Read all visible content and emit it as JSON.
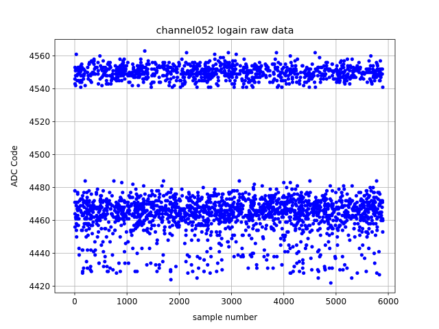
{
  "chart_data": {
    "type": "scatter",
    "title": "channel052 logain raw data",
    "xlabel": "sample number",
    "ylabel": "ADC Code",
    "xlim": [
      -380,
      6130
    ],
    "ylim": [
      4416,
      4570
    ],
    "xticks": [
      0,
      1000,
      2000,
      3000,
      4000,
      5000,
      6000
    ],
    "xtick_labels": [
      "0",
      "1000",
      "2000",
      "3000",
      "4000",
      "5000",
      "6000"
    ],
    "yticks": [
      4420,
      4440,
      4460,
      4480,
      4500,
      4520,
      4540,
      4560
    ],
    "ytick_labels": [
      "4420",
      "4440",
      "4460",
      "4480",
      "4500",
      "4520",
      "4540",
      "4560"
    ],
    "grid": true,
    "legend": "none",
    "colors": {
      "points": "#0000ff",
      "grid": "#b0b0b0",
      "axes": "#000000"
    },
    "series": [
      {
        "sample_range": [
          0,
          5900
        ],
        "sample_count": 5901,
        "clusters": [
          {
            "center": 4467,
            "core_range": [
              4455,
              4476
            ],
            "full_range": [
              4422,
              4484
            ],
            "outliers": [
              {
                "x": 150,
                "y": 4428
              },
              {
                "x": 170,
                "y": 4431
              },
              {
                "x": 300,
                "y": 4430
              },
              {
                "x": 960,
                "y": 4434
              },
              {
                "x": 1030,
                "y": 4434
              },
              {
                "x": 1550,
                "y": 4433
              },
              {
                "x": 1840,
                "y": 4424
              },
              {
                "x": 2340,
                "y": 4425
              },
              {
                "x": 2370,
                "y": 4431
              },
              {
                "x": 2820,
                "y": 4430
              },
              {
                "x": 3320,
                "y": 4431
              },
              {
                "x": 3480,
                "y": 4433
              },
              {
                "x": 4250,
                "y": 4434
              },
              {
                "x": 4660,
                "y": 4425
              },
              {
                "x": 4780,
                "y": 4432
              },
              {
                "x": 4900,
                "y": 4422
              },
              {
                "x": 5300,
                "y": 4425
              },
              {
                "x": 5780,
                "y": 4428
              },
              {
                "x": 5830,
                "y": 4427
              },
              {
                "x": 200,
                "y": 4484
              },
              {
                "x": 900,
                "y": 4483
              },
              {
                "x": 3150,
                "y": 4484
              },
              {
                "x": 4000,
                "y": 4483
              },
              {
                "x": 4500,
                "y": 4484
              }
            ]
          },
          {
            "center": 4550,
            "core_range": [
              4544,
              4557
            ],
            "full_range": [
              4541,
              4563
            ],
            "outliers": [
              {
                "x": 1340,
                "y": 4563
              },
              {
                "x": 2140,
                "y": 4562
              },
              {
                "x": 3090,
                "y": 4561
              },
              {
                "x": 3860,
                "y": 4562
              },
              {
                "x": 4600,
                "y": 4562
              },
              {
                "x": 30,
                "y": 4561
              },
              {
                "x": 2340,
                "y": 4541
              },
              {
                "x": 2560,
                "y": 4541
              },
              {
                "x": 3050,
                "y": 4541
              },
              {
                "x": 4380,
                "y": 4542
              }
            ]
          }
        ]
      }
    ]
  }
}
